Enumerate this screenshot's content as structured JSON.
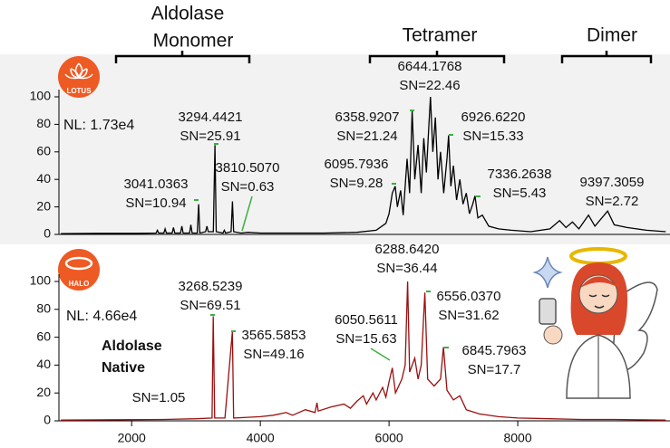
{
  "chart_data": [
    {
      "type": "line",
      "badge": "LOTUS",
      "nl": "NL: 1.73e4",
      "color": "#000000",
      "group_labels": [
        [
          "Aldolase",
          "Monomer"
        ],
        [
          "Tetramer"
        ],
        [
          "Dimer"
        ]
      ],
      "xlim": [
        870,
        10380
      ],
      "ylim": [
        0,
        100
      ],
      "yticks": [
        0,
        20,
        40,
        60,
        80,
        100
      ],
      "x": [
        900,
        1500,
        2100,
        2380,
        2400,
        2420,
        2500,
        2520,
        2540,
        2630,
        2650,
        2670,
        2760,
        2780,
        2800,
        2900,
        2920,
        2940,
        3020,
        3041,
        3060,
        3150,
        3170,
        3190,
        3270,
        3294,
        3315,
        3420,
        3440,
        3460,
        3545,
        3566,
        3585,
        3700,
        3810,
        4000,
        4500,
        5000,
        5500,
        5800,
        5950,
        6000,
        6050,
        6095,
        6130,
        6180,
        6220,
        6280,
        6320,
        6359,
        6400,
        6450,
        6500,
        6540,
        6580,
        6620,
        6644,
        6680,
        6720,
        6760,
        6800,
        6850,
        6900,
        6926,
        6960,
        7000,
        7050,
        7100,
        7150,
        7200,
        7250,
        7300,
        7336,
        7380,
        7450,
        7550,
        7700,
        7900,
        8200,
        8500,
        8650,
        8750,
        8850,
        8950,
        9100,
        9200,
        9397,
        9500,
        9700,
        10000,
        10300
      ],
      "values": [
        0.5,
        0.8,
        0.8,
        1,
        3,
        1,
        1,
        4,
        1,
        1,
        5,
        1,
        1,
        6,
        1,
        1,
        7,
        1,
        1,
        22,
        1,
        2,
        6,
        2,
        2,
        65,
        2,
        1,
        3,
        1,
        2,
        24,
        2,
        1,
        1.5,
        1,
        1,
        1,
        1.5,
        3,
        8,
        15,
        30,
        35,
        20,
        32,
        14,
        55,
        30,
        90,
        40,
        65,
        30,
        70,
        45,
        80,
        100,
        60,
        85,
        40,
        60,
        30,
        55,
        72,
        35,
        50,
        25,
        40,
        22,
        30,
        15,
        22,
        28,
        12,
        14,
        6,
        4,
        3,
        2,
        4,
        10,
        5,
        9,
        4,
        14,
        6,
        17,
        7,
        5,
        3,
        2
      ],
      "annotations": [
        {
          "x": 3041.0363,
          "label": "3041.0363",
          "sn": "SN=10.94"
        },
        {
          "x": 3294.4421,
          "label": "3294.4421",
          "sn": "SN=25.91"
        },
        {
          "x": 3810.507,
          "label": "3810.5070",
          "sn": "SN=0.63"
        },
        {
          "x": 6095.7936,
          "label": "6095.7936",
          "sn": "SN=9.28"
        },
        {
          "x": 6358.9207,
          "label": "6358.9207",
          "sn": "SN=21.24"
        },
        {
          "x": 6644.1768,
          "label": "6644.1768",
          "sn": "SN=22.46"
        },
        {
          "x": 6926.622,
          "label": "6926.6220",
          "sn": "SN=15.33"
        },
        {
          "x": 7336.2638,
          "label": "7336.2638",
          "sn": "SN=5.43"
        },
        {
          "x": 9397.3059,
          "label": "9397.3059",
          "sn": "SN=2.72"
        }
      ]
    },
    {
      "type": "line",
      "badge": "HALO",
      "nl": "NL: 4.66e4",
      "color": "#9b0f0f",
      "sample_label": [
        "Aldolase",
        "Native"
      ],
      "note": "SN=1.05",
      "xlim": [
        870,
        10380
      ],
      "ylim": [
        0,
        100
      ],
      "yticks": [
        0,
        20,
        40,
        60,
        80,
        100
      ],
      "xticks": [
        2000,
        4000,
        6000,
        8000
      ],
      "x": [
        900,
        1800,
        2500,
        3000,
        3250,
        3268,
        3290,
        3450,
        3565,
        3585,
        3800,
        4000,
        4200,
        4400,
        4500,
        4700,
        4850,
        4880,
        4900,
        5100,
        5300,
        5400,
        5500,
        5600,
        5650,
        5750,
        5800,
        5900,
        5950,
        6000,
        6050,
        6100,
        6200,
        6250,
        6288,
        6320,
        6400,
        6450,
        6500,
        6556,
        6600,
        6700,
        6800,
        6845,
        6900,
        7000,
        7100,
        7200,
        7400,
        7700,
        8000,
        8500,
        9000,
        9500,
        10300
      ],
      "values": [
        0.5,
        0.8,
        1,
        1.5,
        2,
        75,
        2,
        2,
        64,
        2,
        2.5,
        3,
        4,
        6,
        4,
        8,
        6,
        13,
        7,
        10,
        12,
        9,
        14,
        18,
        12,
        20,
        15,
        24,
        17,
        28,
        38,
        20,
        30,
        40,
        100,
        35,
        45,
        30,
        40,
        92,
        30,
        25,
        30,
        53,
        22,
        15,
        18,
        8,
        5,
        3,
        2,
        1.5,
        1,
        1,
        0.5
      ],
      "annotations": [
        {
          "x": 3268.5239,
          "label": "3268.5239",
          "sn": "SN=69.51"
        },
        {
          "x": 3565.5853,
          "label": "3565.5853",
          "sn": "SN=49.16"
        },
        {
          "x": 6050.5611,
          "label": "6050.5611",
          "sn": "SN=15.63"
        },
        {
          "x": 6288.642,
          "label": "6288.6420",
          "sn": "SN=36.44"
        },
        {
          "x": 6556.037,
          "label": "6556.0370",
          "sn": "SN=31.62"
        },
        {
          "x": 6845.7963,
          "label": "6845.7963",
          "sn": "SN=17.7"
        }
      ]
    }
  ]
}
